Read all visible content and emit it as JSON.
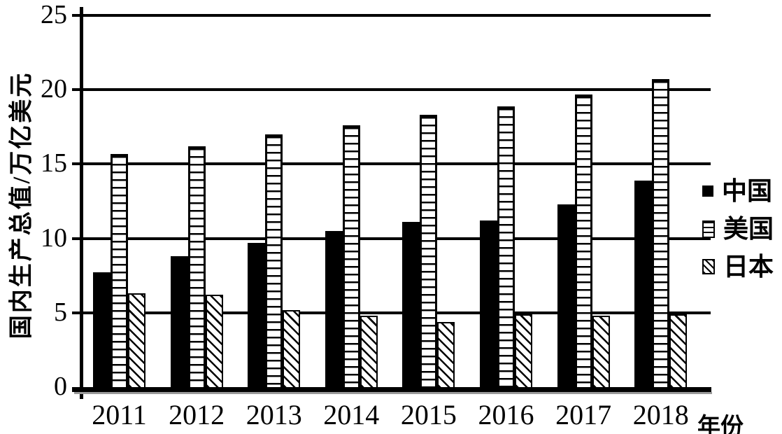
{
  "colors": {
    "ink": "#000000",
    "background": "#ffffff",
    "baseline_shadow": "#9a9a9a"
  },
  "chart_data": {
    "type": "bar",
    "title": "",
    "ylabel": "国内生产总值/万亿美元",
    "xlabel": "年份",
    "ylim": [
      0,
      25
    ],
    "yticks": [
      0,
      5,
      10,
      15,
      20,
      25
    ],
    "grid": true,
    "legend_position": "right",
    "categories": [
      "2011",
      "2012",
      "2013",
      "2014",
      "2015",
      "2016",
      "2017",
      "2018"
    ],
    "series": [
      {
        "name": "中国",
        "pattern": "solid-black",
        "values": [
          7.7,
          8.8,
          9.7,
          10.5,
          11.1,
          11.2,
          12.3,
          13.9
        ]
      },
      {
        "name": "美国",
        "pattern": "horizontal-stripes",
        "values": [
          15.7,
          16.2,
          17.0,
          17.6,
          18.3,
          18.9,
          19.7,
          20.7
        ]
      },
      {
        "name": "日本",
        "pattern": "diagonal-stripes",
        "values": [
          6.3,
          6.2,
          5.2,
          4.8,
          4.4,
          4.9,
          4.8,
          4.9
        ]
      }
    ]
  }
}
